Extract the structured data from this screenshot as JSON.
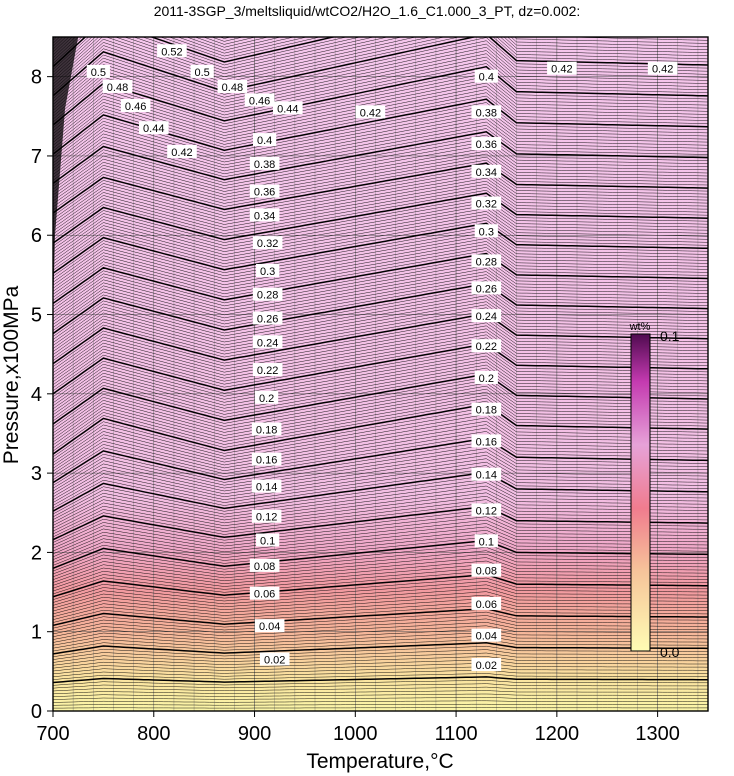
{
  "chart_data": {
    "type": "contour",
    "title": "2011-3SGP_3/meltsliquid/wtCO2/H2O_1.6_C1.000_3_PT, dz=0.002:",
    "xlabel": "Temperature,°C",
    "ylabel": "Pressure,x100MPa",
    "xlim": [
      700,
      1350
    ],
    "ylim": [
      0,
      8.5
    ],
    "x_ticks": [
      "700",
      "800",
      "900",
      "1000",
      "1100",
      "1200",
      "1300"
    ],
    "y_ticks": [
      "0",
      "1",
      "2",
      "3",
      "4",
      "5",
      "6",
      "7",
      "8"
    ],
    "grid": true,
    "contour_interval": 0.002,
    "major_contour_interval": 0.02,
    "contour_labels": [
      {
        "value": "0.02",
        "x": 920,
        "y": 0.65
      },
      {
        "value": "0.02",
        "x": 1130,
        "y": 0.58
      },
      {
        "value": "0.04",
        "x": 915,
        "y": 1.07
      },
      {
        "value": "0.04",
        "x": 1130,
        "y": 0.95
      },
      {
        "value": "0.06",
        "x": 910,
        "y": 1.48
      },
      {
        "value": "0.06",
        "x": 1130,
        "y": 1.35
      },
      {
        "value": "0.08",
        "x": 910,
        "y": 1.83
      },
      {
        "value": "0.08",
        "x": 1130,
        "y": 1.77
      },
      {
        "value": "0.1",
        "x": 913,
        "y": 2.15
      },
      {
        "value": "0.1",
        "x": 1130,
        "y": 2.14
      },
      {
        "value": "0.12",
        "x": 912,
        "y": 2.45
      },
      {
        "value": "0.12",
        "x": 1130,
        "y": 2.53
      },
      {
        "value": "0.14",
        "x": 912,
        "y": 2.83
      },
      {
        "value": "0.14",
        "x": 1130,
        "y": 2.98
      },
      {
        "value": "0.16",
        "x": 912,
        "y": 3.17
      },
      {
        "value": "0.16",
        "x": 1130,
        "y": 3.4
      },
      {
        "value": "0.18",
        "x": 912,
        "y": 3.55
      },
      {
        "value": "0.18",
        "x": 1130,
        "y": 3.8
      },
      {
        "value": "0.2",
        "x": 912,
        "y": 3.95
      },
      {
        "value": "0.2",
        "x": 1130,
        "y": 4.2
      },
      {
        "value": "0.22",
        "x": 913,
        "y": 4.3
      },
      {
        "value": "0.22",
        "x": 1130,
        "y": 4.6
      },
      {
        "value": "0.24",
        "x": 913,
        "y": 4.65
      },
      {
        "value": "0.24",
        "x": 1130,
        "y": 4.98
      },
      {
        "value": "0.26",
        "x": 913,
        "y": 4.95
      },
      {
        "value": "0.26",
        "x": 1130,
        "y": 5.33
      },
      {
        "value": "0.28",
        "x": 913,
        "y": 5.25
      },
      {
        "value": "0.28",
        "x": 1130,
        "y": 5.67
      },
      {
        "value": "0.3",
        "x": 913,
        "y": 5.55
      },
      {
        "value": "0.3",
        "x": 1130,
        "y": 6.05
      },
      {
        "value": "0.32",
        "x": 913,
        "y": 5.9
      },
      {
        "value": "0.32",
        "x": 1130,
        "y": 6.4
      },
      {
        "value": "0.34",
        "x": 910,
        "y": 6.25
      },
      {
        "value": "0.34",
        "x": 1130,
        "y": 6.8
      },
      {
        "value": "0.36",
        "x": 910,
        "y": 6.55
      },
      {
        "value": "0.36",
        "x": 1130,
        "y": 7.15
      },
      {
        "value": "0.38",
        "x": 910,
        "y": 6.9
      },
      {
        "value": "0.38",
        "x": 1130,
        "y": 7.55
      },
      {
        "value": "0.4",
        "x": 910,
        "y": 7.2
      },
      {
        "value": "0.4",
        "x": 1130,
        "y": 8.0
      },
      {
        "value": "0.42",
        "x": 828,
        "y": 7.05
      },
      {
        "value": "0.42",
        "x": 1015,
        "y": 7.55
      },
      {
        "value": "0.42",
        "x": 1205,
        "y": 8.1
      },
      {
        "value": "0.42",
        "x": 1305,
        "y": 8.1
      },
      {
        "value": "0.44",
        "x": 800,
        "y": 7.35
      },
      {
        "value": "0.44",
        "x": 933,
        "y": 7.6
      },
      {
        "value": "0.46",
        "x": 782,
        "y": 7.63
      },
      {
        "value": "0.46",
        "x": 905,
        "y": 7.7
      },
      {
        "value": "0.48",
        "x": 764,
        "y": 7.87
      },
      {
        "value": "0.48",
        "x": 878,
        "y": 7.87
      },
      {
        "value": "0.5",
        "x": 745,
        "y": 8.06
      },
      {
        "value": "0.5",
        "x": 848,
        "y": 8.06
      },
      {
        "value": "0.52",
        "x": 818,
        "y": 8.32
      }
    ],
    "colorbar": {
      "label": "wt%",
      "min_label": "0.0",
      "max_label": "0.1",
      "colors": [
        "#fffcb4",
        "#f6b39a",
        "#f07c8e",
        "#e49ed4",
        "#c43ab0",
        "#500a50"
      ]
    },
    "field_colors": {
      "low": "#fbf6a8",
      "mid": "#f19aa2",
      "high": "#f4c4ea",
      "contour": "#000000"
    }
  }
}
